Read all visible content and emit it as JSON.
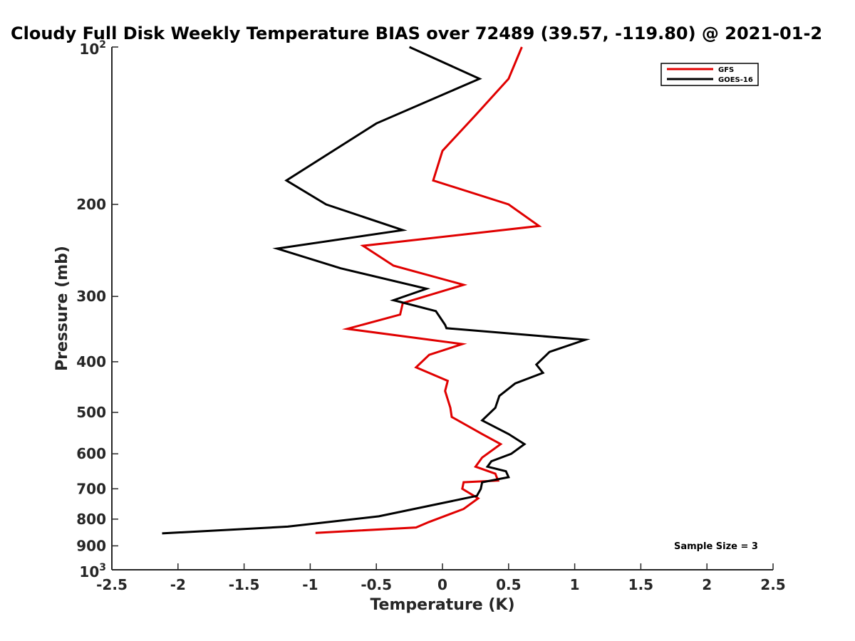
{
  "chart_data": {
    "type": "line",
    "title": "Cloudy Full Disk Weekly Temperature BIAS over 72489 (39.57, -119.80) @ 2021-01-2",
    "xlabel": "Temperature (K)",
    "ylabel": "Pressure (mb)",
    "xlim": [
      -2.5,
      2.5
    ],
    "ylim": [
      100,
      1000
    ],
    "yscale": "log",
    "y_reversed": true,
    "xticks": [
      "-2.5",
      "-2",
      "-1.5",
      "-1",
      "-0.5",
      "0",
      "0.5",
      "1",
      "1.5",
      "2",
      "2.5"
    ],
    "xtick_values": [
      -2.5,
      -2,
      -1.5,
      -1,
      -0.5,
      0,
      0.5,
      1,
      1.5,
      2,
      2.5
    ],
    "yticks": [
      {
        "value": 100,
        "base": "10",
        "exp": "2"
      },
      {
        "value": 200,
        "label": "200"
      },
      {
        "value": 300,
        "label": "300"
      },
      {
        "value": 400,
        "label": "400"
      },
      {
        "value": 500,
        "label": "500"
      },
      {
        "value": 600,
        "label": "600"
      },
      {
        "value": 700,
        "label": "700"
      },
      {
        "value": 800,
        "label": "800"
      },
      {
        "value": 900,
        "label": "900"
      },
      {
        "value": 1000,
        "base": "10",
        "exp": "3"
      }
    ],
    "legend_position": "top-right",
    "annotation": "Sample Size = 3",
    "series": [
      {
        "name": "GFS",
        "color": "#e00000",
        "points": [
          [
            0.6,
            100
          ],
          [
            0.5,
            115
          ],
          [
            0.25,
            135
          ],
          [
            0.0,
            158
          ],
          [
            -0.07,
            180
          ],
          [
            0.5,
            200
          ],
          [
            0.73,
            220
          ],
          [
            -0.6,
            240
          ],
          [
            -0.37,
            262
          ],
          [
            0.16,
            285
          ],
          [
            -0.3,
            309
          ],
          [
            -0.32,
            325
          ],
          [
            -0.72,
            346
          ],
          [
            0.15,
            370
          ],
          [
            -0.1,
            388
          ],
          [
            -0.2,
            410
          ],
          [
            0.04,
            435
          ],
          [
            0.02,
            455
          ],
          [
            0.06,
            490
          ],
          [
            0.07,
            510
          ],
          [
            0.3,
            550
          ],
          [
            0.44,
            575
          ],
          [
            0.3,
            610
          ],
          [
            0.25,
            635
          ],
          [
            0.4,
            655
          ],
          [
            0.42,
            675
          ],
          [
            0.16,
            680
          ],
          [
            0.15,
            700
          ],
          [
            0.27,
            730
          ],
          [
            0.16,
            765
          ],
          [
            -0.1,
            810
          ],
          [
            -0.2,
            830
          ],
          [
            -0.96,
            850
          ]
        ]
      },
      {
        "name": "GOES-16",
        "color": "#000000",
        "points": [
          [
            -0.25,
            100
          ],
          [
            0.28,
            115
          ],
          [
            -0.5,
            140
          ],
          [
            -1.18,
            180
          ],
          [
            -0.88,
            200
          ],
          [
            -0.3,
            224
          ],
          [
            -1.25,
            243
          ],
          [
            -0.77,
            265
          ],
          [
            -0.12,
            290
          ],
          [
            -0.37,
            305
          ],
          [
            -0.05,
            320
          ],
          [
            0.02,
            340
          ],
          [
            0.03,
            345
          ],
          [
            1.08,
            363
          ],
          [
            0.81,
            383
          ],
          [
            0.71,
            405
          ],
          [
            0.76,
            420
          ],
          [
            0.55,
            440
          ],
          [
            0.43,
            465
          ],
          [
            0.4,
            490
          ],
          [
            0.3,
            518
          ],
          [
            0.5,
            550
          ],
          [
            0.62,
            575
          ],
          [
            0.52,
            600
          ],
          [
            0.37,
            620
          ],
          [
            0.34,
            635
          ],
          [
            0.48,
            648
          ],
          [
            0.5,
            665
          ],
          [
            0.3,
            680
          ],
          [
            0.29,
            700
          ],
          [
            0.26,
            722
          ],
          [
            -0.48,
            790
          ],
          [
            -1.17,
            827
          ],
          [
            -2.12,
            852
          ]
        ]
      }
    ]
  }
}
